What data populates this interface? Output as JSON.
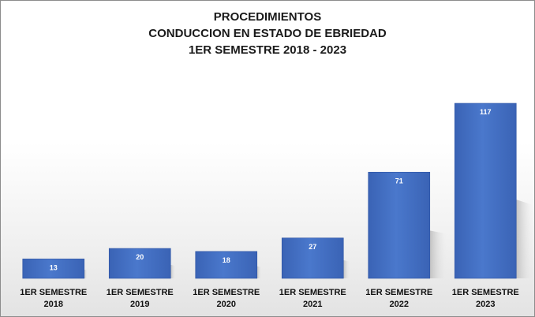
{
  "chart_data": {
    "type": "bar",
    "title": [
      "PROCEDIMIENTOS",
      "CONDUCCION EN ESTADO DE EBRIEDAD",
      "1ER SEMESTRE 2018 - 2023"
    ],
    "categories": [
      [
        "1ER SEMESTRE",
        "2018"
      ],
      [
        "1ER SEMESTRE",
        "2019"
      ],
      [
        "1ER SEMESTRE",
        "2020"
      ],
      [
        "1ER SEMESTRE",
        "2021"
      ],
      [
        "1ER SEMESTRE",
        "2022"
      ],
      [
        "1ER  SEMESTRE",
        "2023"
      ]
    ],
    "values": [
      13,
      20,
      18,
      27,
      71,
      117
    ],
    "bar_color": "#4472c4",
    "bar_color_dark": "#2f55a4",
    "xlabel": "",
    "ylabel": "",
    "grid": false,
    "legend": "none"
  }
}
